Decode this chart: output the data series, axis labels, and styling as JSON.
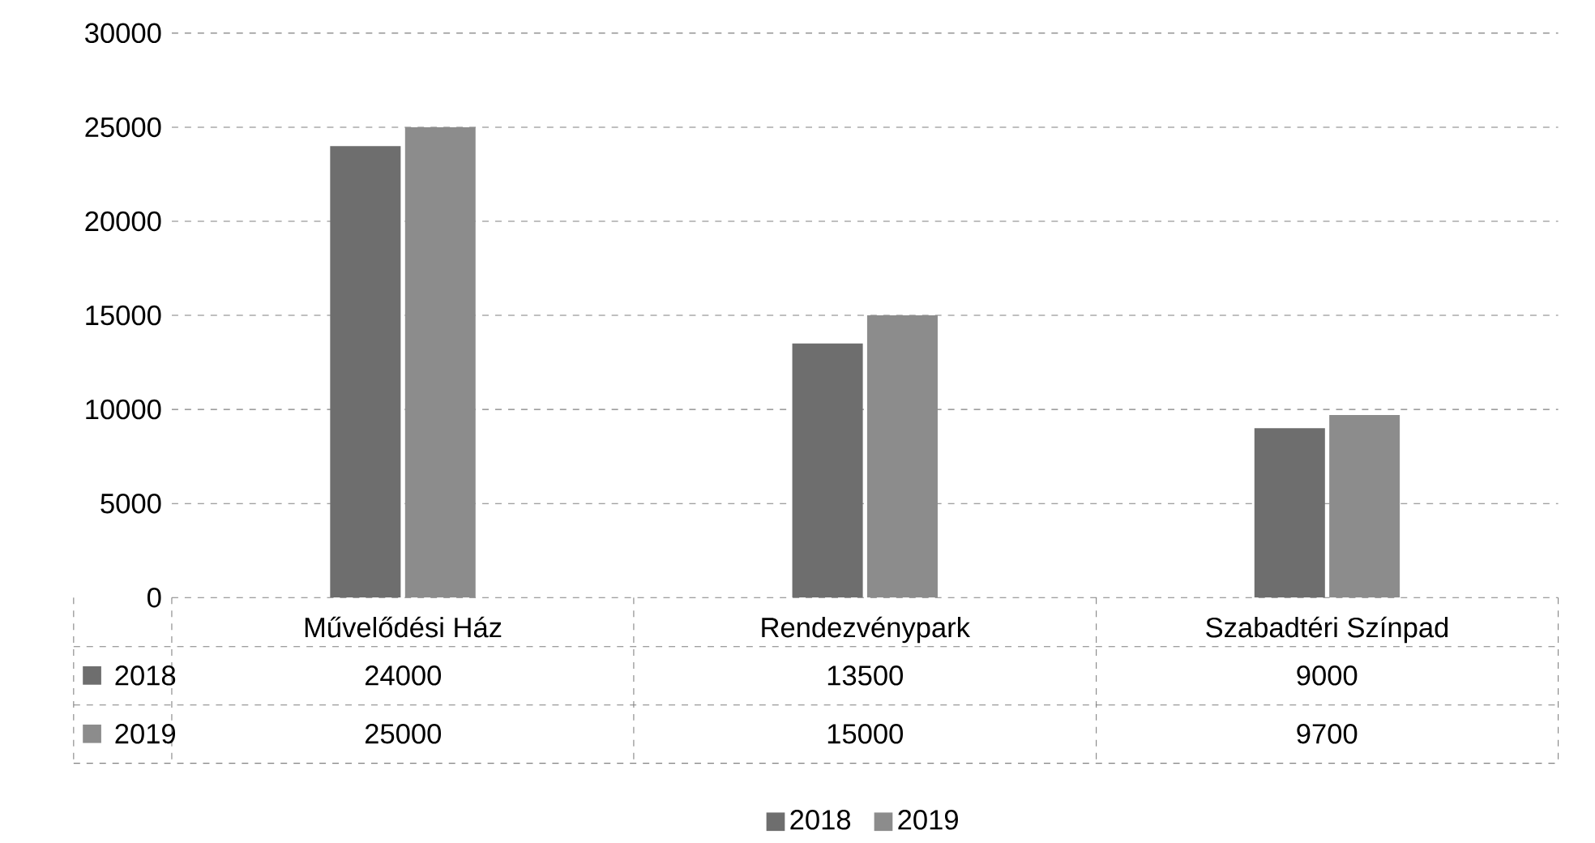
{
  "chart_data": {
    "type": "bar",
    "categories": [
      "Művelődési Ház",
      "Rendezvénypark",
      "Szabadtéri Színpad"
    ],
    "series": [
      {
        "name": "2018",
        "color": "#6e6e6e",
        "values": [
          24000,
          13500,
          9000
        ]
      },
      {
        "name": "2019",
        "color": "#8c8c8c",
        "values": [
          25000,
          15000,
          9700
        ]
      }
    ],
    "ylim": [
      0,
      30000
    ],
    "yticks": [
      0,
      5000,
      10000,
      15000,
      20000,
      25000,
      30000
    ],
    "grid": "y",
    "legend": "bottom",
    "data_labels": true
  }
}
